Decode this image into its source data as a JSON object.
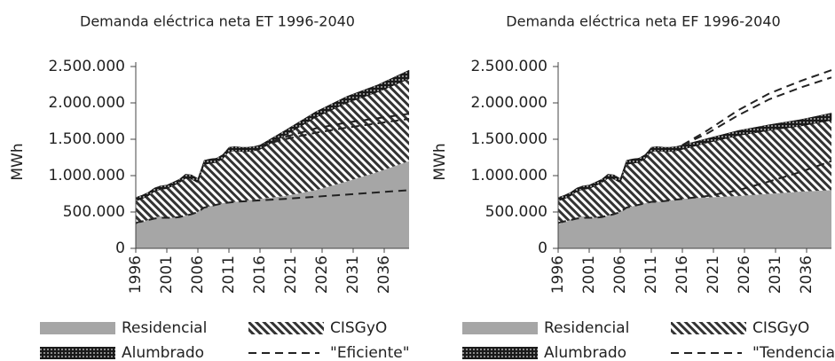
{
  "chart_data": [
    {
      "type": "stacked-area",
      "title": "Demanda eléctrica neta ET 1996-2040",
      "ylabel": "MWh",
      "x": [
        1996,
        1997,
        1998,
        1999,
        2000,
        2001,
        2002,
        2003,
        2004,
        2005,
        2006,
        2007,
        2008,
        2009,
        2010,
        2011,
        2012,
        2013,
        2014,
        2015,
        2016,
        2020,
        2025,
        2030,
        2035,
        2040
      ],
      "xlim": [
        1996,
        2040
      ],
      "xticks": [
        1996,
        2001,
        2006,
        2011,
        2016,
        2021,
        2026,
        2031,
        2036
      ],
      "ylim": [
        0,
        2500000
      ],
      "yticks": [
        0,
        {
          "value": 500000,
          "label": "500.000"
        },
        {
          "value": 1000000,
          "label": "1.000.000"
        },
        {
          "value": 1500000,
          "label": "1.500.000"
        },
        {
          "value": 2000000,
          "label": "2.000.000"
        },
        {
          "value": 2500000,
          "label": "2.500.000"
        }
      ],
      "series": [
        {
          "name": "Residencial",
          "color": "#a6a6a6",
          "values": [
            330000,
            360000,
            390000,
            420000,
            440000,
            420000,
            420000,
            430000,
            450000,
            470000,
            500000,
            560000,
            580000,
            600000,
            620000,
            640000,
            640000,
            650000,
            660000,
            670000,
            680000,
            720000,
            800000,
            920000,
            1050000,
            1200000
          ]
        },
        {
          "name": "CISGyO",
          "color": "#000000",
          "values": [
            320000,
            320000,
            330000,
            360000,
            370000,
            400000,
            440000,
            470000,
            510000,
            480000,
            400000,
            590000,
            590000,
            580000,
            610000,
            690000,
            700000,
            680000,
            670000,
            670000,
            680000,
            830000,
            1000000,
            1080000,
            1100000,
            1130000
          ]
        },
        {
          "name": "Alumbrado",
          "color": "#222222",
          "values": [
            50000,
            50000,
            50000,
            50000,
            50000,
            50000,
            50000,
            50000,
            60000,
            60000,
            60000,
            60000,
            60000,
            60000,
            60000,
            60000,
            60000,
            60000,
            60000,
            60000,
            60000,
            70000,
            80000,
            90000,
            100000,
            120000
          ]
        }
      ],
      "dashed": {
        "name": "\"Eficiente\"",
        "color": "#222222",
        "lines": [
          [
            350000,
            370000,
            390000,
            410000,
            420000,
            420000,
            420000,
            430000,
            450000,
            470000,
            500000,
            560000,
            580000,
            600000,
            620000,
            630000,
            640000,
            645000,
            650000,
            655000,
            660000,
            680000,
            710000,
            740000,
            770000,
            800000
          ],
          [
            null,
            null,
            null,
            null,
            null,
            null,
            null,
            null,
            null,
            null,
            null,
            null,
            null,
            null,
            null,
            null,
            null,
            null,
            null,
            null,
            1410000,
            1530000,
            1650000,
            1730000,
            1790000,
            1850000
          ],
          [
            null,
            null,
            null,
            null,
            null,
            null,
            null,
            null,
            null,
            null,
            null,
            null,
            null,
            null,
            null,
            null,
            null,
            null,
            null,
            null,
            1410000,
            1500000,
            1590000,
            1660000,
            1720000,
            1780000
          ]
        ]
      }
    },
    {
      "type": "stacked-area",
      "title": "Demanda eléctrica neta EF 1996-2040",
      "ylabel": "MWh",
      "x": [
        1996,
        1997,
        1998,
        1999,
        2000,
        2001,
        2002,
        2003,
        2004,
        2005,
        2006,
        2007,
        2008,
        2009,
        2010,
        2011,
        2012,
        2013,
        2014,
        2015,
        2016,
        2020,
        2025,
        2030,
        2035,
        2040
      ],
      "xlim": [
        1996,
        2040
      ],
      "xticks": [
        1996,
        2001,
        2006,
        2011,
        2016,
        2021,
        2026,
        2031,
        2036
      ],
      "ylim": [
        0,
        2500000
      ],
      "yticks": [
        0,
        {
          "value": 500000,
          "label": "500.000"
        },
        {
          "value": 1000000,
          "label": "1.000.000"
        },
        {
          "value": 1500000,
          "label": "1.500.000"
        },
        {
          "value": 2000000,
          "label": "2.000.000"
        },
        {
          "value": 2500000,
          "label": "2.500.000"
        }
      ],
      "series": [
        {
          "name": "Residencial",
          "color": "#a6a6a6",
          "values": [
            330000,
            360000,
            390000,
            420000,
            440000,
            420000,
            420000,
            430000,
            450000,
            470000,
            500000,
            560000,
            580000,
            600000,
            620000,
            640000,
            640000,
            650000,
            660000,
            670000,
            680000,
            700000,
            720000,
            750000,
            780000,
            800000
          ]
        },
        {
          "name": "CISGyO",
          "color": "#000000",
          "values": [
            320000,
            320000,
            330000,
            360000,
            370000,
            400000,
            440000,
            470000,
            510000,
            480000,
            400000,
            590000,
            590000,
            580000,
            610000,
            690000,
            700000,
            680000,
            670000,
            670000,
            680000,
            750000,
            830000,
            870000,
            900000,
            960000
          ]
        },
        {
          "name": "Alumbrado",
          "color": "#222222",
          "values": [
            50000,
            50000,
            50000,
            50000,
            50000,
            50000,
            50000,
            50000,
            60000,
            60000,
            60000,
            60000,
            60000,
            60000,
            60000,
            60000,
            60000,
            60000,
            60000,
            60000,
            60000,
            60000,
            70000,
            80000,
            90000,
            100000
          ]
        }
      ],
      "dashed": {
        "name": "\"Tendencial\"",
        "color": "#222222",
        "lines": [
          [
            350000,
            370000,
            390000,
            410000,
            420000,
            420000,
            420000,
            430000,
            450000,
            470000,
            500000,
            560000,
            580000,
            600000,
            620000,
            640000,
            640000,
            650000,
            660000,
            670000,
            680000,
            720000,
            800000,
            920000,
            1050000,
            1200000
          ],
          [
            null,
            null,
            null,
            null,
            null,
            null,
            null,
            null,
            null,
            null,
            null,
            null,
            null,
            null,
            null,
            null,
            null,
            null,
            null,
            null,
            1420000,
            1620000,
            1900000,
            2130000,
            2300000,
            2450000
          ],
          [
            null,
            null,
            null,
            null,
            null,
            null,
            null,
            null,
            null,
            null,
            null,
            null,
            null,
            null,
            null,
            null,
            null,
            null,
            null,
            null,
            1420000,
            1580000,
            1830000,
            2050000,
            2210000,
            2350000
          ]
        ]
      }
    }
  ]
}
